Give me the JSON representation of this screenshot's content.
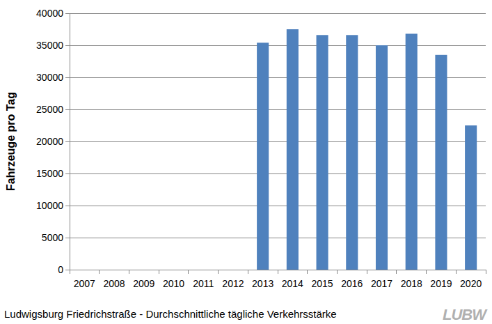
{
  "chart_data": {
    "type": "bar",
    "title": "Ludwigsburg Friedrichstraße - Durchschnittliche tägliche Verkehrsstärke",
    "y_label": "Fahrzeuge pro Tag",
    "logo": "LUBW",
    "categories": [
      "2007",
      "2008",
      "2009",
      "2010",
      "2011",
      "2012",
      "2013",
      "2014",
      "2015",
      "2016",
      "2017",
      "2018",
      "2019",
      "2020"
    ],
    "values": [
      null,
      null,
      null,
      null,
      null,
      null,
      35400,
      37500,
      36600,
      36600,
      35000,
      36800,
      33500,
      22500
    ],
    "color": "#4f81bd",
    "ylim": [
      0,
      40000
    ],
    "yticks": [
      0,
      5000,
      10000,
      15000,
      20000,
      25000,
      30000,
      35000,
      40000
    ],
    "grid": true
  }
}
